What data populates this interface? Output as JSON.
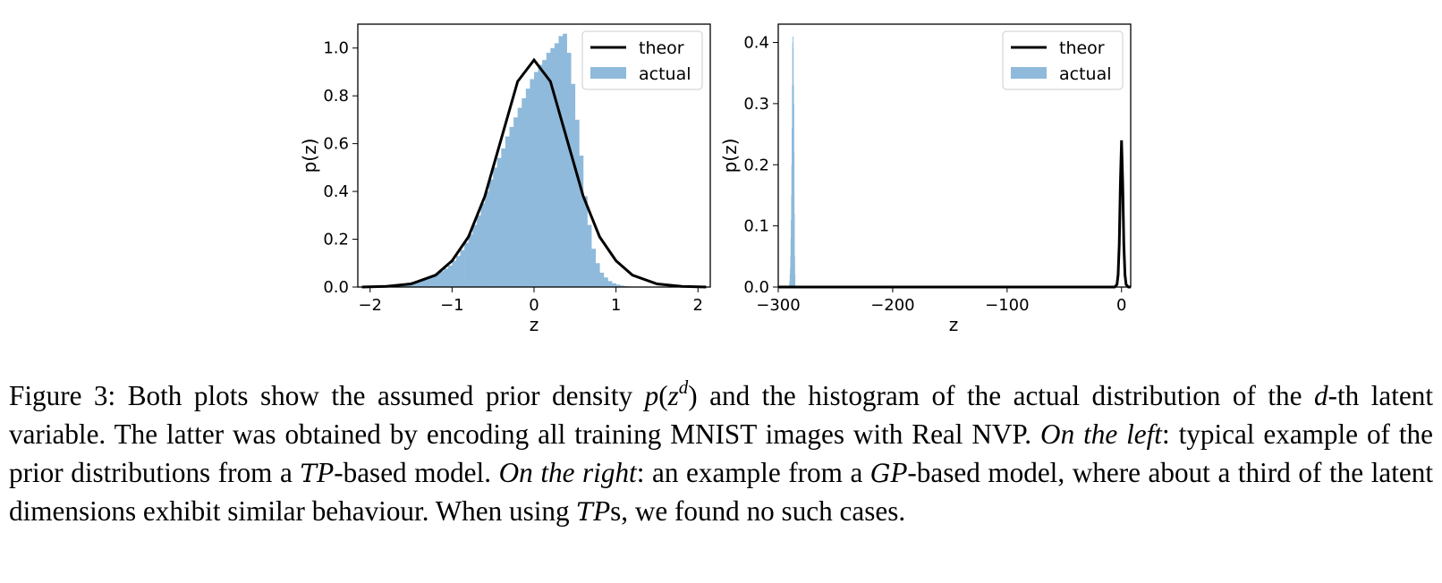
{
  "figures": [
    {
      "xlabel": "z",
      "ylabel": "p(z)",
      "xticks": [
        -2,
        -1,
        0,
        1,
        2
      ],
      "xtick_labels": [
        "−2",
        "−1",
        "0",
        "1",
        "2"
      ],
      "yticks": [
        0.0,
        0.2,
        0.4,
        0.6,
        0.8,
        1.0
      ],
      "ytick_labels": [
        "0.0",
        "0.2",
        "0.4",
        "0.6",
        "0.8",
        "1.0"
      ],
      "legend": {
        "line": "theor",
        "patch": "actual"
      }
    },
    {
      "xlabel": "z",
      "ylabel": "p(z)",
      "xticks": [
        -300,
        -200,
        -100,
        0
      ],
      "xtick_labels": [
        "−300",
        "−200",
        "−100",
        "0"
      ],
      "yticks": [
        0.0,
        0.1,
        0.2,
        0.3,
        0.4
      ],
      "ytick_labels": [
        "0.0",
        "0.1",
        "0.2",
        "0.3",
        "0.4"
      ],
      "legend": {
        "line": "theor",
        "patch": "actual"
      }
    }
  ],
  "chart_data": [
    {
      "type": "area",
      "xlabel": "z",
      "ylabel": "p(z)",
      "xlim": [
        -2.15,
        2.15
      ],
      "ylim": [
        0,
        1.1
      ],
      "grid": false,
      "legend_position": "top-right",
      "colors": {
        "theor": "#000000",
        "actual": "#8fbadb"
      },
      "series": [
        {
          "name": "theor",
          "kind": "line",
          "x": [
            -2.1,
            -1.8,
            -1.5,
            -1.2,
            -1.0,
            -0.8,
            -0.6,
            -0.4,
            -0.2,
            0.0,
            0.2,
            0.4,
            0.6,
            0.8,
            1.0,
            1.2,
            1.5,
            1.8,
            2.1
          ],
          "y": [
            0.0,
            0.003,
            0.013,
            0.05,
            0.11,
            0.21,
            0.38,
            0.62,
            0.86,
            0.95,
            0.86,
            0.62,
            0.38,
            0.21,
            0.11,
            0.05,
            0.013,
            0.003,
            0.0
          ]
        },
        {
          "name": "actual",
          "kind": "histogram",
          "bin_width": 0.05,
          "bin_starts": [
            -2.0,
            -1.95,
            -1.9,
            -1.85,
            -1.8,
            -1.75,
            -1.7,
            -1.65,
            -1.6,
            -1.55,
            -1.5,
            -1.45,
            -1.4,
            -1.35,
            -1.3,
            -1.25,
            -1.2,
            -1.15,
            -1.1,
            -1.05,
            -1.0,
            -0.95,
            -0.9,
            -0.85,
            -0.8,
            -0.75,
            -0.7,
            -0.65,
            -0.6,
            -0.55,
            -0.5,
            -0.45,
            -0.4,
            -0.35,
            -0.3,
            -0.25,
            -0.2,
            -0.15,
            -0.1,
            -0.05,
            0.0,
            0.05,
            0.1,
            0.15,
            0.2,
            0.25,
            0.3,
            0.35,
            0.4,
            0.45,
            0.5,
            0.55,
            0.6,
            0.65,
            0.7,
            0.75,
            0.8,
            0.85,
            0.9,
            0.95,
            1.0,
            1.05,
            1.1,
            1.15,
            1.2,
            1.25
          ],
          "values": [
            0.002,
            0.003,
            0.004,
            0.005,
            0.006,
            0.008,
            0.01,
            0.012,
            0.015,
            0.018,
            0.022,
            0.026,
            0.031,
            0.036,
            0.042,
            0.049,
            0.057,
            0.066,
            0.077,
            0.09,
            0.11,
            0.13,
            0.155,
            0.185,
            0.22,
            0.26,
            0.3,
            0.35,
            0.4,
            0.45,
            0.5,
            0.54,
            0.58,
            0.63,
            0.67,
            0.71,
            0.75,
            0.79,
            0.83,
            0.87,
            0.9,
            0.93,
            0.95,
            0.98,
            1.0,
            1.02,
            1.05,
            1.06,
            0.98,
            0.85,
            0.7,
            0.55,
            0.38,
            0.26,
            0.16,
            0.1,
            0.06,
            0.04,
            0.025,
            0.016,
            0.01,
            0.006,
            0.004,
            0.002,
            0.001,
            0.0005
          ]
        }
      ]
    },
    {
      "type": "area",
      "xlabel": "z",
      "ylabel": "p(z)",
      "xlim": [
        -300,
        8
      ],
      "ylim": [
        0,
        0.43
      ],
      "grid": false,
      "legend_position": "top-right",
      "colors": {
        "theor": "#000000",
        "actual": "#8fbadb"
      },
      "series": [
        {
          "name": "theor",
          "kind": "line",
          "x": [
            -300,
            -6,
            -4,
            -3,
            -2,
            -1,
            0,
            1,
            2,
            3,
            4,
            6,
            8
          ],
          "y": [
            0.0,
            0.0,
            0.004,
            0.02,
            0.07,
            0.17,
            0.24,
            0.17,
            0.07,
            0.02,
            0.004,
            0.0,
            0.0
          ]
        },
        {
          "name": "actual",
          "kind": "histogram",
          "bin_width": 0.25,
          "bin_starts": [
            -290.5,
            -290.25,
            -290.0,
            -289.75,
            -289.5,
            -289.25,
            -289.0,
            -288.75,
            -288.5,
            -288.25,
            -288.0,
            -287.75,
            -287.5,
            -287.25,
            -287.0,
            -286.75,
            -286.5,
            -286.25,
            -286.0,
            -285.75
          ],
          "values": [
            0.005,
            0.01,
            0.02,
            0.03,
            0.05,
            0.08,
            0.11,
            0.15,
            0.2,
            0.26,
            0.33,
            0.4,
            0.41,
            0.39,
            0.33,
            0.3,
            0.22,
            0.12,
            0.05,
            0.02
          ]
        }
      ]
    }
  ],
  "caption": {
    "t1": "Figure 3: Both plots show the assumed prior density ",
    "m1": "p",
    "m1_open": "(",
    "m1_z": "z",
    "m1_sup": "d",
    "m1_close": ")",
    "t2": " and the histogram of the actual distribution of the ",
    "m2": "d",
    "t3": "-th latent variable. The latter was obtained by encoding all training MNIST images with Real NVP. ",
    "i1": "On the left",
    "t4": ": typical example of the prior distributions from a ",
    "cal1": "T",
    "m3": "P",
    "t5": "-based model. ",
    "i2": "On the right",
    "t6": ": an example from a ",
    "cal2": "G",
    "m4": "P",
    "t7": "-based model, where about a third of the latent dimensions exhibit similar behaviour. When using ",
    "cal3": "T",
    "m5": "P",
    "t8": "s, we found no such cases."
  }
}
